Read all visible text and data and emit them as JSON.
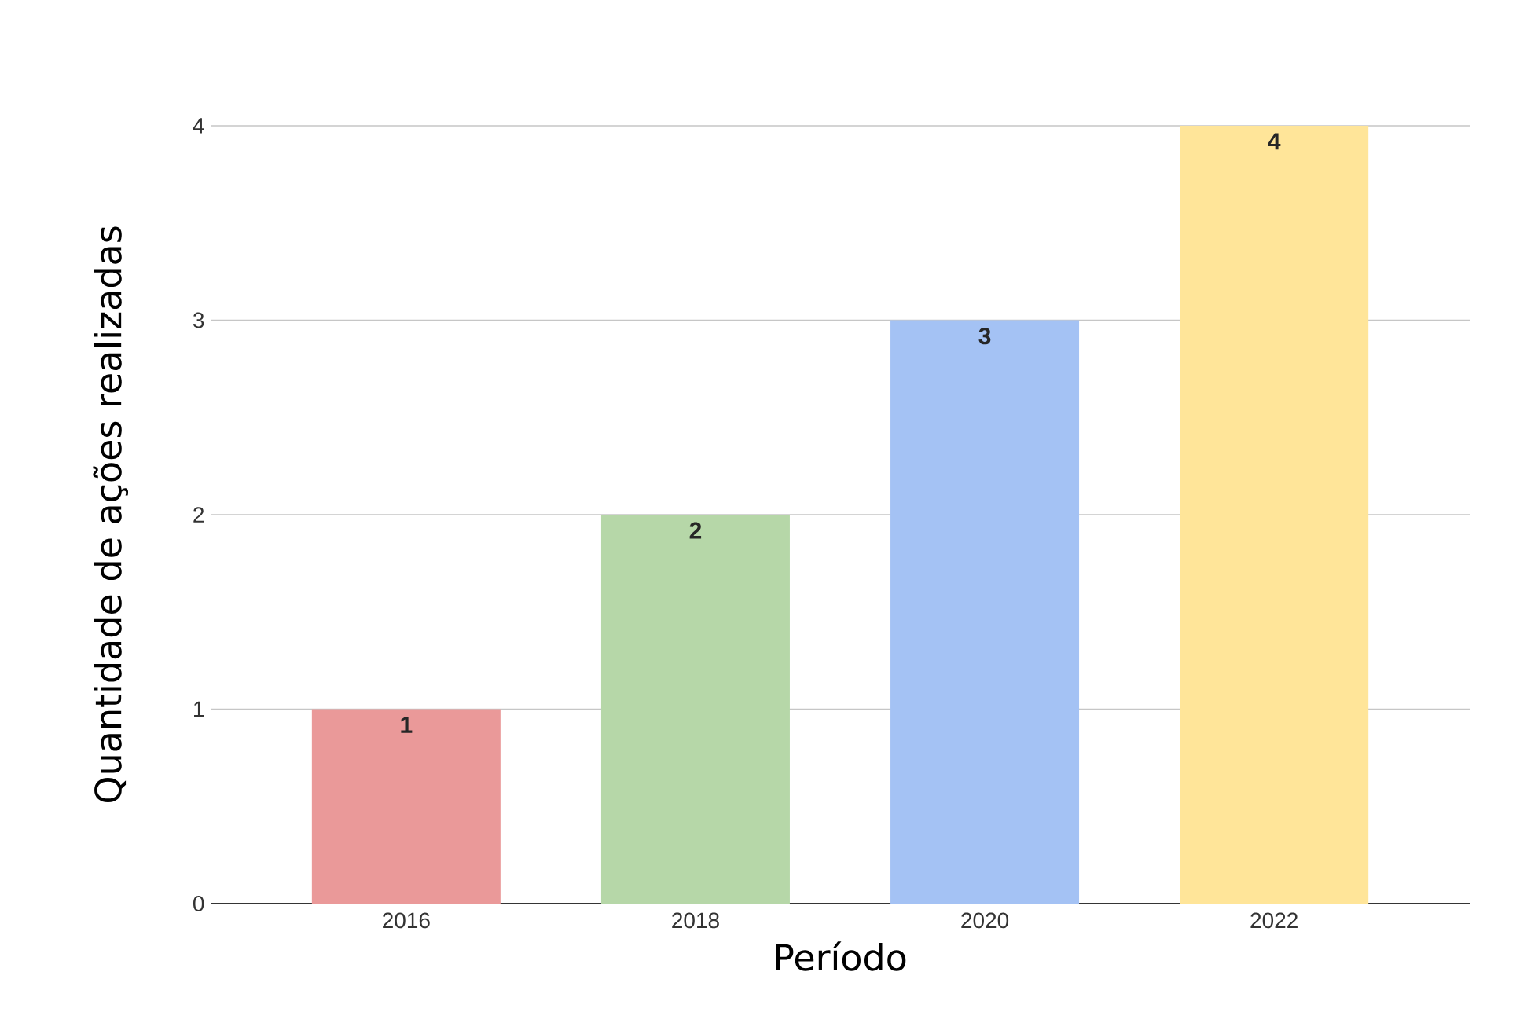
{
  "chart_data": {
    "type": "bar",
    "xlabel": "Período",
    "ylabel": "Quantidade de ações realizadas",
    "categories": [
      "2016",
      "2018",
      "2020",
      "2022"
    ],
    "values": [
      1,
      2,
      3,
      4
    ],
    "colors": [
      "#ea9999",
      "#b6d7a8",
      "#a4c2f4",
      "#ffe599"
    ],
    "ylim": [
      0,
      4
    ],
    "yticks": [
      0,
      1,
      2,
      3,
      4
    ],
    "grid": "y",
    "data_labels": true
  }
}
